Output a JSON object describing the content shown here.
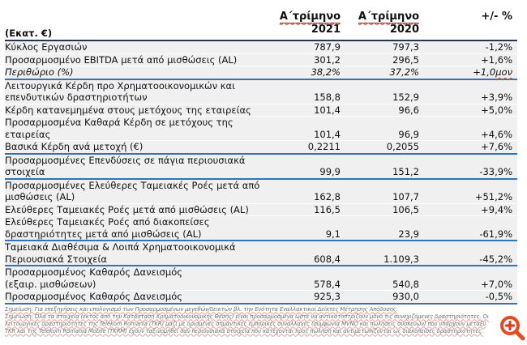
{
  "table": {
    "unit_label": "(Εκατ. €)",
    "columns": [
      {
        "period": "Α΄τρίμηνο",
        "year": "2021"
      },
      {
        "period": "Α΄τρίμηνο",
        "year": "2020"
      },
      {
        "label": "+/- %"
      }
    ],
    "rows": [
      {
        "label": "Κύκλος Εργασιών",
        "v2021": "787,9",
        "v2020": "797,3",
        "delta": "-1,2%"
      },
      {
        "label": "Προσαρμοσμένο EBITDA μετά από μισθώσεις (AL)",
        "v2021": "301,2",
        "v2020": "296,5",
        "delta": "+1,6%"
      },
      {
        "label": "Περιθώριο (%)",
        "v2021": "38,2%",
        "v2020": "37,2%",
        "delta": "+1,0",
        "delta_suffix": "μον",
        "italic": true,
        "section_end": true
      },
      {
        "label": "Λειτουργικά Κέρδη προ Χρηματοοικονομικών και\nεπενδυτικών δραστηριοτήτων",
        "v2021": "158,8",
        "v2020": "152,9",
        "delta": "+3,9%"
      },
      {
        "label": "Κέρδη κατανεμημένα στους μετόχους της εταιρείας",
        "v2021": "101,4",
        "v2020": "96,6",
        "delta": "+5,0%"
      },
      {
        "label": "Προσαρμοσμένα Καθαρά Κέρδη σε μετόχους της\nεταιρείας",
        "v2021": "101,4",
        "v2020": "96,9",
        "delta": "+4,6%"
      },
      {
        "label": "Βασικά Κέρδη ανά μετοχή (€)",
        "v2021": "0,2211",
        "v2020": "0,2055",
        "delta": "+7,6%",
        "section_end": true
      },
      {
        "label": "Προσαρμοσμένες Επενδύσεις σε πάγια περιουσιακά\nστοιχεία",
        "v2021": "99,9",
        "v2020": "151,2",
        "delta": "-33,9%",
        "section_end": true
      },
      {
        "label": "Προσαρμοσμένες Ελεύθερες Ταμειακές Ροές μετά από\nμισθώσεις (AL)",
        "v2021": "162,8",
        "v2020": "107,7",
        "delta": "+51,2%"
      },
      {
        "label": "Ελεύθερες Ταμειακές Ροές μετά από μισθώσεις (AL)",
        "v2021": "116,5",
        "v2020": "106,5",
        "delta": "+9,4%"
      },
      {
        "label": "Ελεύθερες Ταμειακές Ροές από διακοπείσες\nδραστηριότητες μετά από μισθώσεις (AL)",
        "v2021": "9,1",
        "v2020": "23,9",
        "delta": "-61,9%",
        "section_end": true
      },
      {
        "label": "Ταμειακά Διαθέσιμα & Λοιπά Χρηματοοικονομικά\nΠεριουσιακά Στοιχεία",
        "v2021": "608,4",
        "v2020": "1.109,3",
        "delta": "-45,2%",
        "section_end": true
      },
      {
        "label": "Προσαρμοσμένος Καθαρός Δανεισμός\n(εξαιρ. μισθώσεων)",
        "v2021": "578,4",
        "v2020": "540,8",
        "delta": "+7,0%"
      },
      {
        "label": "Προσαρμοσμένος Καθαρός Δανεισμός",
        "v2021": "925,3",
        "v2020": "930,0",
        "delta": "-0,5%",
        "section_end": true
      }
    ]
  },
  "footnotes": [
    "Σημείωση: Για επεξηγήσεις και υπολογισμό των Προσαρμοσμένων μεγεθών/δεικτών βλ. την Ενότητα Εναλλακτικοί Δείκτες Μέτρησης Απόδοσης.",
    "Σημείωση: Όλα τα στοιχεία (εκτός από την Κατάσταση Χρηματοοικονομικής Θέσης) είναι προσαρμοσμένα ώστε να αντικατοπτρίζουν μόνο τις συνεχιζόμενες δραστηριότητες. Οι\nλειτουργικές δραστηριότητες της Telekom Romania (TKR) μαζί με ορισμένες σημαντικές εμπορικές συναλλαγές (συμφωνία MVNO και πωλήσεις συσκευών) που υπάρχουν μεταξύ\nTKR και της Telekom Romania Mobile (TKRM) έχουν ταξινομηθεί σαν περιουσιακά στοιχεία που κατέχονται προς πώληση και αντιμετωπίζονται ως διακοπείσες δραστηριότητες."
  ],
  "icons": {
    "zoom_button": "magnifier-plus-icon"
  },
  "colors": {
    "section_line": "#2e75b6",
    "header_line": "#22364e",
    "row_background": "#f0f0f0",
    "spellcheck_red": "#e04b33",
    "zoom_icon_orange": "#e8491f",
    "footnote_gray": "#6f6f6f"
  }
}
